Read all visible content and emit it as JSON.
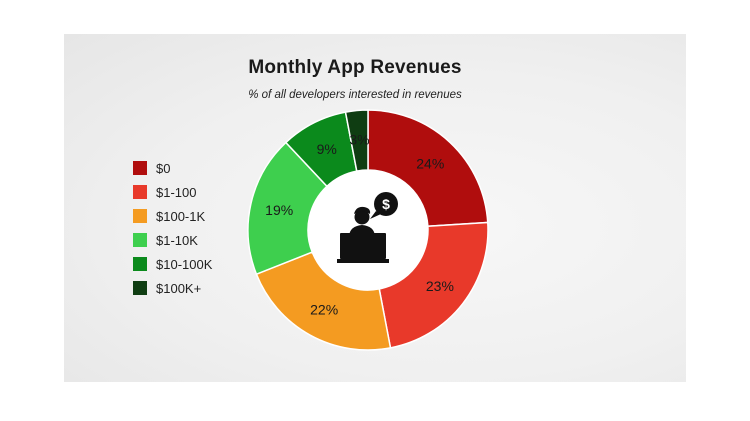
{
  "chart_data": {
    "type": "pie",
    "title": "Monthly App Revenues",
    "subtitle": "% of all developers interested in revenues",
    "categories": [
      "$0",
      "$1-100",
      "$100-1K",
      "$1-10K",
      "$10-100K",
      "$100K+"
    ],
    "values": [
      24,
      23,
      22,
      19,
      9,
      3
    ],
    "labels": [
      "24%",
      "23%",
      "22%",
      "19%",
      "9%",
      "3%"
    ],
    "colors": [
      "#b00d0d",
      "#e8392a",
      "#f49b21",
      "#3ecf4e",
      "#0b8a1c",
      "#0f3d12"
    ],
    "donut": true,
    "legend_position": "left",
    "center_icon": "developer-with-dollar-speech-icon"
  }
}
